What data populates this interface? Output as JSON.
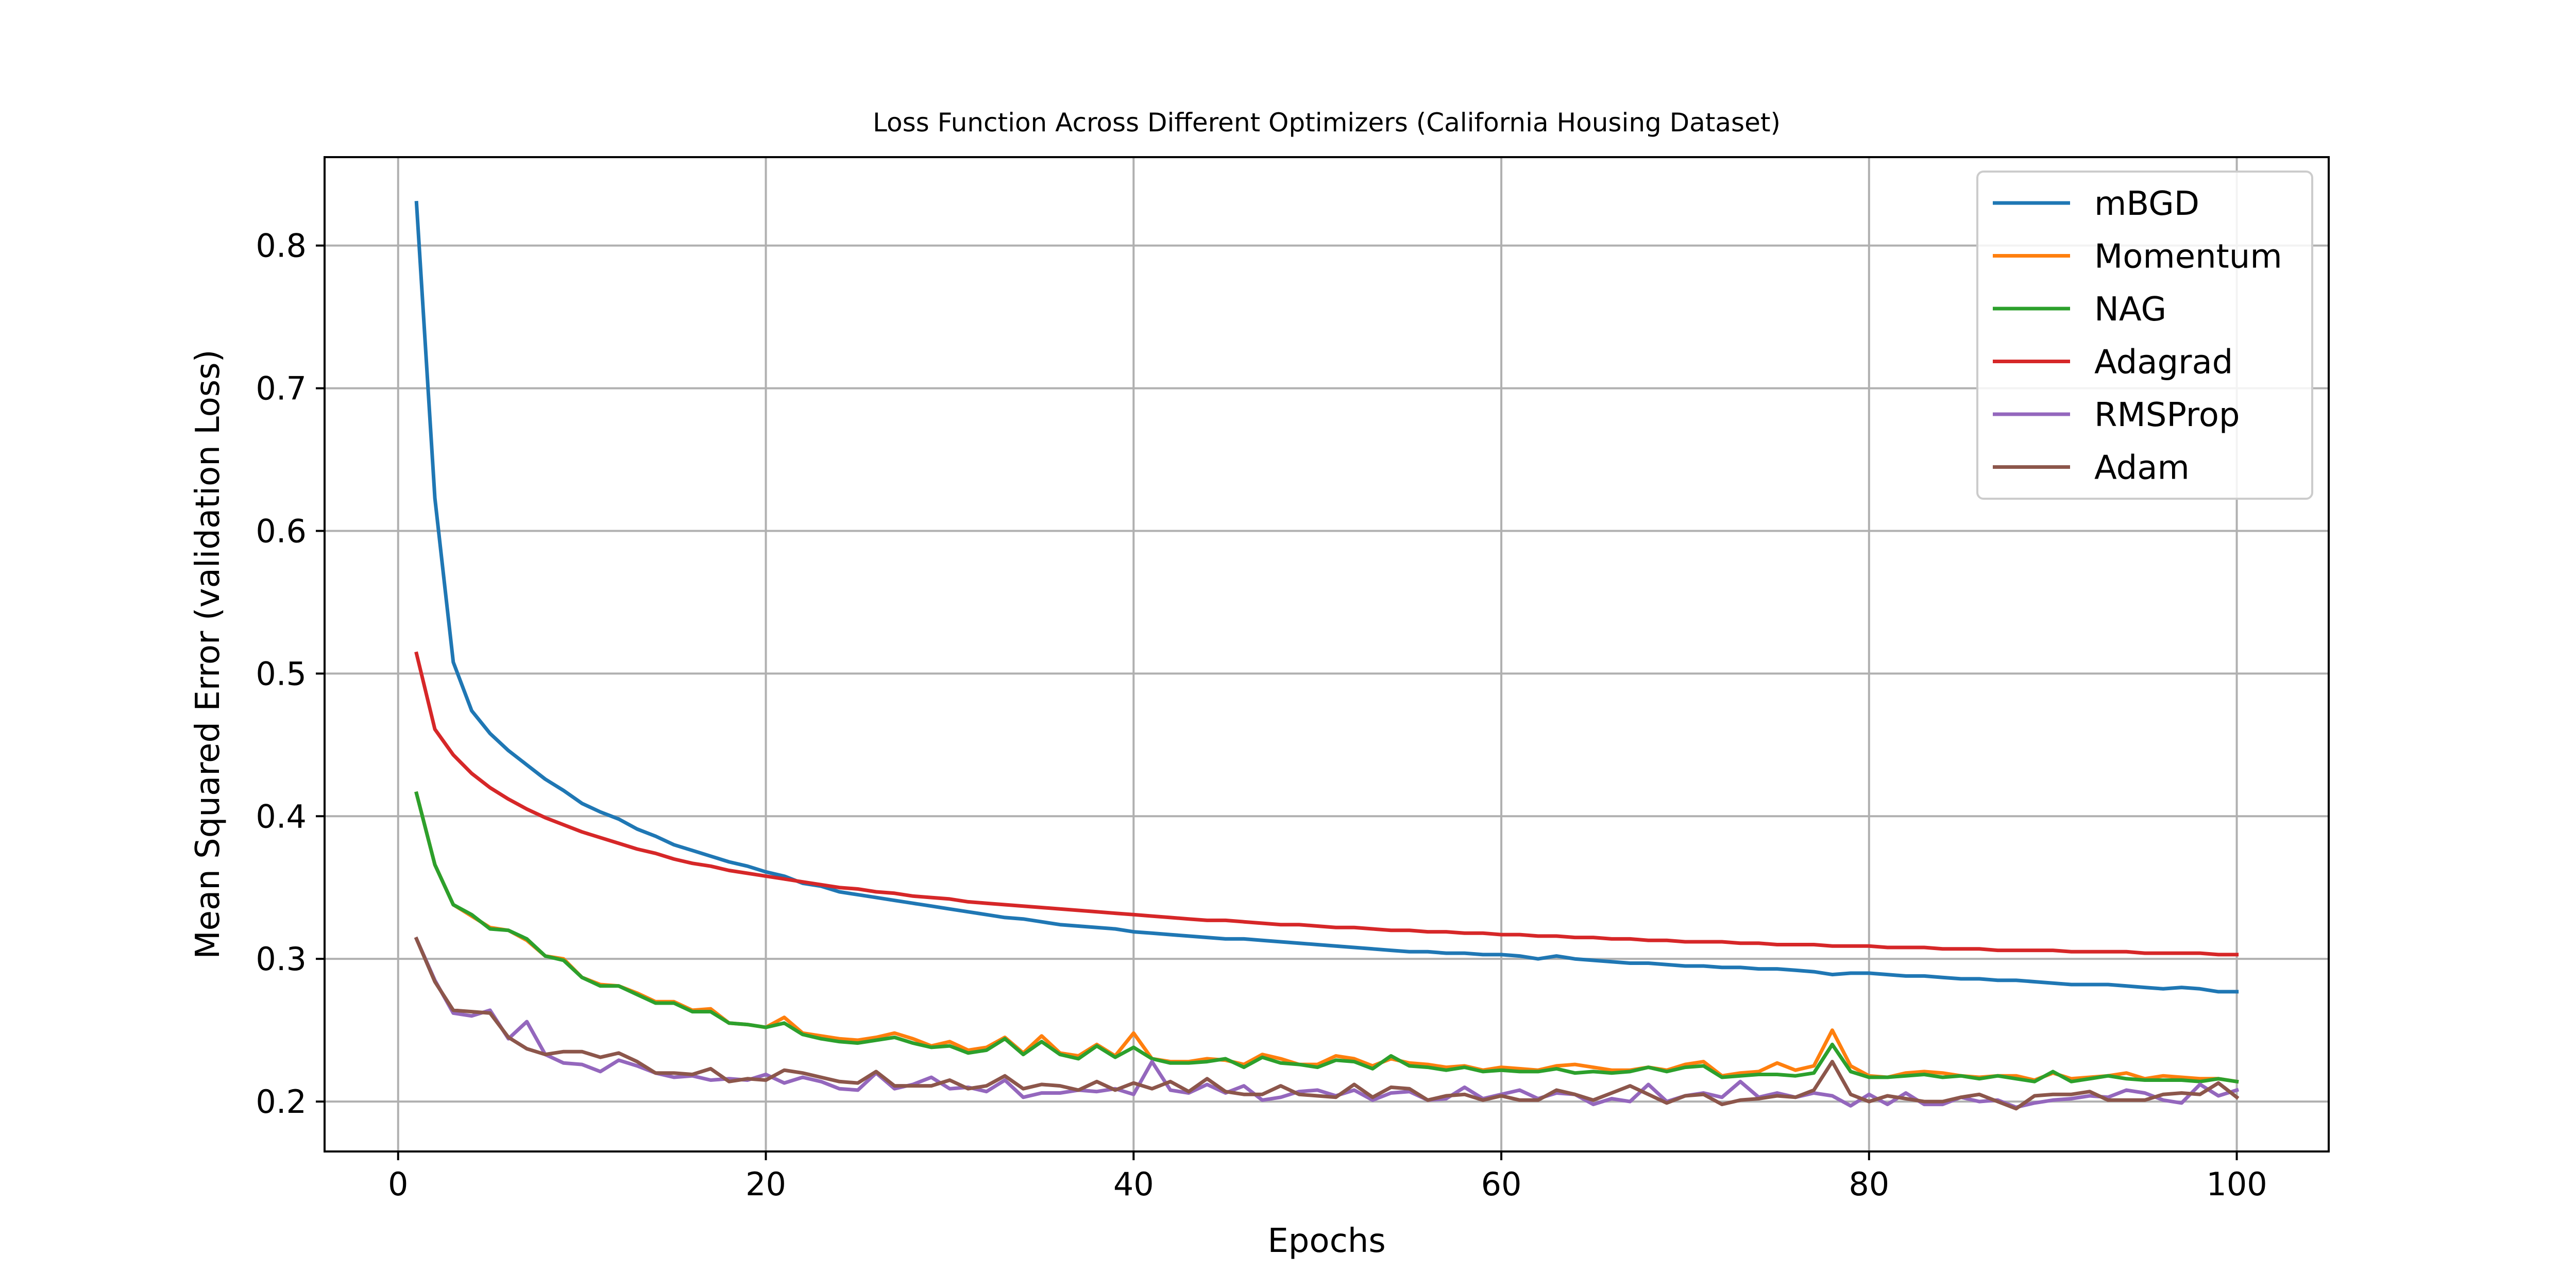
{
  "chart_data": {
    "type": "line",
    "title": "Loss Function Across Different Optimizers (California Housing Dataset)",
    "xlabel": "Epochs",
    "ylabel": "Mean Squared Error (validation Loss)",
    "xlim": [
      -4,
      105
    ],
    "ylim": [
      0.165,
      0.862
    ],
    "xticks": [
      0,
      20,
      40,
      60,
      80,
      100
    ],
    "yticks": [
      0.2,
      0.3,
      0.4,
      0.5,
      0.6,
      0.7,
      0.8
    ],
    "xtick_labels": [
      "0",
      "20",
      "40",
      "60",
      "80",
      "100"
    ],
    "ytick_labels": [
      "0.2",
      "0.3",
      "0.4",
      "0.5",
      "0.6",
      "0.7",
      "0.8"
    ],
    "grid": true,
    "legend_position": "top-right",
    "x": [
      1,
      2,
      3,
      4,
      5,
      6,
      7,
      8,
      9,
      10,
      11,
      12,
      13,
      14,
      15,
      16,
      17,
      18,
      19,
      20,
      21,
      22,
      23,
      24,
      25,
      26,
      27,
      28,
      29,
      30,
      31,
      32,
      33,
      34,
      35,
      36,
      37,
      38,
      39,
      40,
      41,
      42,
      43,
      44,
      45,
      46,
      47,
      48,
      49,
      50,
      51,
      52,
      53,
      54,
      55,
      56,
      57,
      58,
      59,
      60,
      61,
      62,
      63,
      64,
      65,
      66,
      67,
      68,
      69,
      70,
      71,
      72,
      73,
      74,
      75,
      76,
      77,
      78,
      79,
      80,
      81,
      82,
      83,
      84,
      85,
      86,
      87,
      88,
      89,
      90,
      91,
      92,
      93,
      94,
      95,
      96,
      97,
      98,
      99,
      100
    ],
    "series": [
      {
        "name": "mBGD",
        "color": "#1f77b4",
        "values": [
          0.83,
          0.623,
          0.508,
          0.474,
          0.458,
          0.446,
          0.436,
          0.426,
          0.418,
          0.409,
          0.403,
          0.398,
          0.391,
          0.386,
          0.38,
          0.376,
          0.372,
          0.368,
          0.365,
          0.361,
          0.358,
          0.353,
          0.351,
          0.347,
          0.345,
          0.343,
          0.341,
          0.339,
          0.337,
          0.335,
          0.333,
          0.331,
          0.329,
          0.328,
          0.326,
          0.324,
          0.323,
          0.322,
          0.321,
          0.319,
          0.318,
          0.317,
          0.316,
          0.315,
          0.314,
          0.314,
          0.313,
          0.312,
          0.311,
          0.31,
          0.309,
          0.308,
          0.307,
          0.306,
          0.305,
          0.305,
          0.304,
          0.304,
          0.303,
          0.303,
          0.302,
          0.3,
          0.302,
          0.3,
          0.299,
          0.298,
          0.297,
          0.297,
          0.296,
          0.295,
          0.295,
          0.294,
          0.294,
          0.293,
          0.293,
          0.292,
          0.291,
          0.289,
          0.29,
          0.29,
          0.289,
          0.288,
          0.288,
          0.287,
          0.286,
          0.286,
          0.285,
          0.285,
          0.284,
          0.283,
          0.282,
          0.282,
          0.282,
          0.281,
          0.28,
          0.279,
          0.28,
          0.279,
          0.277,
          0.277
        ]
      },
      {
        "name": "Momentum",
        "color": "#ff7f0e",
        "values": [
          0.416,
          0.366,
          0.338,
          0.33,
          0.322,
          0.32,
          0.313,
          0.302,
          0.3,
          0.287,
          0.282,
          0.281,
          0.276,
          0.27,
          0.27,
          0.264,
          0.265,
          0.255,
          0.254,
          0.252,
          0.259,
          0.248,
          0.246,
          0.244,
          0.243,
          0.245,
          0.248,
          0.244,
          0.239,
          0.242,
          0.236,
          0.238,
          0.245,
          0.234,
          0.246,
          0.234,
          0.232,
          0.24,
          0.232,
          0.248,
          0.23,
          0.228,
          0.228,
          0.23,
          0.229,
          0.226,
          0.233,
          0.23,
          0.226,
          0.226,
          0.232,
          0.23,
          0.225,
          0.23,
          0.227,
          0.226,
          0.224,
          0.225,
          0.222,
          0.224,
          0.223,
          0.222,
          0.225,
          0.226,
          0.224,
          0.222,
          0.222,
          0.224,
          0.222,
          0.226,
          0.228,
          0.218,
          0.22,
          0.221,
          0.227,
          0.222,
          0.225,
          0.25,
          0.225,
          0.218,
          0.217,
          0.22,
          0.221,
          0.22,
          0.218,
          0.217,
          0.218,
          0.218,
          0.215,
          0.22,
          0.216,
          0.217,
          0.218,
          0.22,
          0.216,
          0.218,
          0.217,
          0.216,
          0.216,
          0.214
        ]
      },
      {
        "name": "NAG",
        "color": "#2ca02c",
        "values": [
          0.416,
          0.366,
          0.338,
          0.331,
          0.321,
          0.32,
          0.314,
          0.302,
          0.299,
          0.287,
          0.281,
          0.281,
          0.275,
          0.269,
          0.269,
          0.263,
          0.263,
          0.255,
          0.254,
          0.252,
          0.255,
          0.247,
          0.244,
          0.242,
          0.241,
          0.243,
          0.245,
          0.241,
          0.238,
          0.239,
          0.234,
          0.236,
          0.244,
          0.233,
          0.242,
          0.233,
          0.23,
          0.239,
          0.231,
          0.238,
          0.23,
          0.227,
          0.227,
          0.228,
          0.23,
          0.224,
          0.231,
          0.227,
          0.226,
          0.224,
          0.229,
          0.228,
          0.223,
          0.232,
          0.225,
          0.224,
          0.222,
          0.224,
          0.221,
          0.222,
          0.221,
          0.221,
          0.223,
          0.22,
          0.221,
          0.22,
          0.221,
          0.224,
          0.221,
          0.224,
          0.225,
          0.217,
          0.218,
          0.219,
          0.219,
          0.218,
          0.22,
          0.24,
          0.221,
          0.217,
          0.217,
          0.218,
          0.219,
          0.217,
          0.218,
          0.216,
          0.218,
          0.216,
          0.214,
          0.221,
          0.214,
          0.216,
          0.218,
          0.216,
          0.215,
          0.215,
          0.215,
          0.214,
          0.216,
          0.214
        ]
      },
      {
        "name": "Adagrad",
        "color": "#d62728",
        "values": [
          0.514,
          0.461,
          0.443,
          0.43,
          0.42,
          0.412,
          0.405,
          0.399,
          0.394,
          0.389,
          0.385,
          0.381,
          0.377,
          0.374,
          0.37,
          0.367,
          0.365,
          0.362,
          0.36,
          0.358,
          0.356,
          0.354,
          0.352,
          0.35,
          0.349,
          0.347,
          0.346,
          0.344,
          0.343,
          0.342,
          0.34,
          0.339,
          0.338,
          0.337,
          0.336,
          0.335,
          0.334,
          0.333,
          0.332,
          0.331,
          0.33,
          0.329,
          0.328,
          0.327,
          0.327,
          0.326,
          0.325,
          0.324,
          0.324,
          0.323,
          0.322,
          0.322,
          0.321,
          0.32,
          0.32,
          0.319,
          0.319,
          0.318,
          0.318,
          0.317,
          0.317,
          0.316,
          0.316,
          0.315,
          0.315,
          0.314,
          0.314,
          0.313,
          0.313,
          0.312,
          0.312,
          0.312,
          0.311,
          0.311,
          0.31,
          0.31,
          0.31,
          0.309,
          0.309,
          0.309,
          0.308,
          0.308,
          0.308,
          0.307,
          0.307,
          0.307,
          0.306,
          0.306,
          0.306,
          0.306,
          0.305,
          0.305,
          0.305,
          0.305,
          0.304,
          0.304,
          0.304,
          0.304,
          0.303,
          0.303
        ]
      },
      {
        "name": "RMSProp",
        "color": "#9467bd",
        "values": [
          0.314,
          0.285,
          0.262,
          0.26,
          0.264,
          0.244,
          0.256,
          0.233,
          0.227,
          0.226,
          0.221,
          0.229,
          0.225,
          0.22,
          0.217,
          0.218,
          0.215,
          0.216,
          0.215,
          0.219,
          0.213,
          0.217,
          0.214,
          0.209,
          0.208,
          0.22,
          0.209,
          0.212,
          0.217,
          0.209,
          0.21,
          0.207,
          0.215,
          0.203,
          0.206,
          0.206,
          0.208,
          0.207,
          0.209,
          0.205,
          0.228,
          0.208,
          0.206,
          0.212,
          0.206,
          0.211,
          0.201,
          0.203,
          0.207,
          0.208,
          0.204,
          0.208,
          0.201,
          0.206,
          0.207,
          0.201,
          0.202,
          0.21,
          0.202,
          0.205,
          0.208,
          0.202,
          0.206,
          0.205,
          0.198,
          0.202,
          0.2,
          0.212,
          0.2,
          0.204,
          0.206,
          0.203,
          0.214,
          0.203,
          0.206,
          0.203,
          0.206,
          0.204,
          0.197,
          0.205,
          0.198,
          0.206,
          0.198,
          0.198,
          0.203,
          0.2,
          0.201,
          0.196,
          0.199,
          0.201,
          0.202,
          0.204,
          0.203,
          0.208,
          0.206,
          0.201,
          0.199,
          0.212,
          0.204,
          0.208
        ]
      },
      {
        "name": "Adam",
        "color": "#8c564b",
        "values": [
          0.314,
          0.284,
          0.264,
          0.263,
          0.262,
          0.245,
          0.237,
          0.233,
          0.235,
          0.235,
          0.231,
          0.234,
          0.228,
          0.22,
          0.22,
          0.219,
          0.223,
          0.214,
          0.216,
          0.215,
          0.222,
          0.22,
          0.217,
          0.214,
          0.213,
          0.221,
          0.211,
          0.211,
          0.211,
          0.215,
          0.209,
          0.211,
          0.218,
          0.209,
          0.212,
          0.211,
          0.208,
          0.214,
          0.208,
          0.213,
          0.209,
          0.214,
          0.207,
          0.216,
          0.207,
          0.205,
          0.205,
          0.211,
          0.205,
          0.204,
          0.203,
          0.212,
          0.203,
          0.21,
          0.209,
          0.201,
          0.204,
          0.205,
          0.201,
          0.204,
          0.201,
          0.201,
          0.208,
          0.205,
          0.201,
          0.206,
          0.211,
          0.205,
          0.199,
          0.204,
          0.205,
          0.198,
          0.201,
          0.202,
          0.204,
          0.203,
          0.208,
          0.228,
          0.205,
          0.2,
          0.204,
          0.202,
          0.2,
          0.2,
          0.203,
          0.205,
          0.2,
          0.195,
          0.204,
          0.205,
          0.205,
          0.207,
          0.201,
          0.201,
          0.201,
          0.205,
          0.206,
          0.205,
          0.213,
          0.203
        ]
      }
    ]
  }
}
